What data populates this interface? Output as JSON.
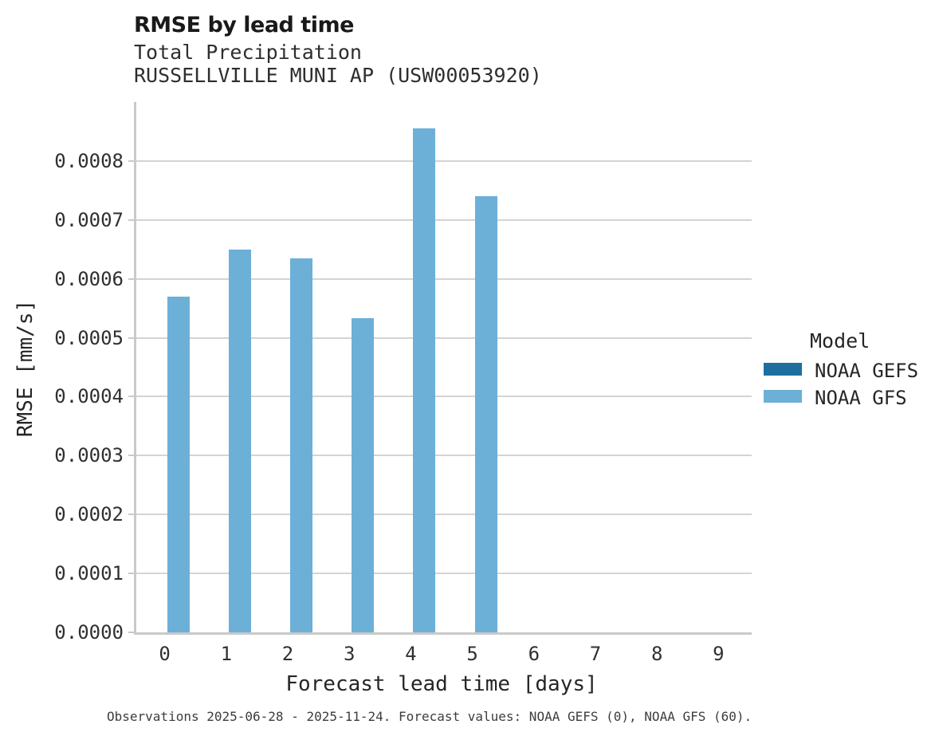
{
  "header": {
    "title": "RMSE by lead time",
    "subtitle1": "Total Precipitation",
    "subtitle2": "RUSSELLVILLE MUNI AP (USW00053920)"
  },
  "legend": {
    "title": "Model",
    "items": [
      {
        "label": "NOAA GEFS",
        "color": "#1e6f9f"
      },
      {
        "label": "NOAA GFS",
        "color": "#6cb0d8"
      }
    ]
  },
  "footer": {
    "note": "Observations 2025-06-28 - 2025-11-24. Forecast values: NOAA GEFS (0), NOAA GFS (60)."
  },
  "chart_data": {
    "type": "bar",
    "title": "RMSE by lead time",
    "subtitle": [
      "Total Precipitation",
      "RUSSELLVILLE MUNI AP (USW00053920)"
    ],
    "xlabel": "Forecast lead time [days]",
    "ylabel": "RMSE [mm/s]",
    "categories": [
      "0",
      "1",
      "2",
      "3",
      "4",
      "5",
      "6",
      "7",
      "8",
      "9"
    ],
    "series": [
      {
        "name": "NOAA GEFS",
        "color": "#1e6f9f",
        "values": [
          0,
          0,
          0,
          0,
          0,
          0,
          0,
          0,
          0,
          0
        ]
      },
      {
        "name": "NOAA GFS",
        "color": "#6cb0d8",
        "values": [
          0.00057,
          0.00065,
          0.000635,
          0.000533,
          0.000855,
          0.00074,
          0,
          0,
          0,
          0
        ]
      }
    ],
    "ylim": [
      0,
      0.0009
    ],
    "ytick_labels": [
      "0.0000",
      "0.0001",
      "0.0002",
      "0.0003",
      "0.0004",
      "0.0005",
      "0.0006",
      "0.0007",
      "0.0008"
    ],
    "ytick_step": 0.0001,
    "grid": "horizontal",
    "legend_title": "Model",
    "legend_position": "right",
    "caption": "Observations 2025-06-28 - 2025-11-24. Forecast values: NOAA GEFS (0), NOAA GFS (60)."
  },
  "colors": {
    "grid": "#d4d4d4",
    "spine": "#c9c9c9",
    "bar_gefs": "#1e6f9f",
    "bar_gfs": "#6cb0d8"
  }
}
